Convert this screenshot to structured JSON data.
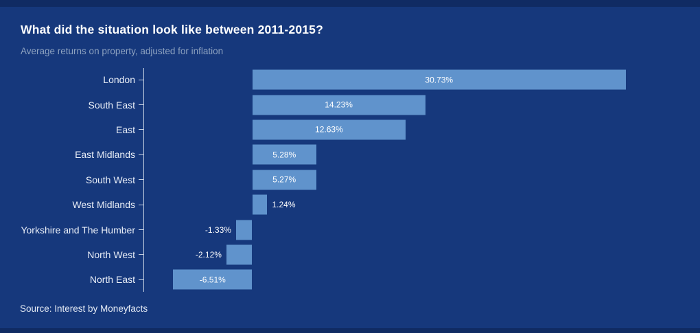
{
  "header": {
    "title": "What did the situation look like between 2011-2015?",
    "subtitle": "Average returns on property, adjusted for inflation"
  },
  "source_text": "Source: Interest by Moneyfacts",
  "colors": {
    "background": "#16387c",
    "bar_fill": "#6093cc",
    "axis": "#c8d3e4",
    "title_text": "#ffffff",
    "subtitle_text": "#8da2c0",
    "value_label_text": "#ffffff"
  },
  "chart_data": {
    "type": "bar",
    "orientation": "horizontal",
    "title": "What did the situation look like between 2011-2015?",
    "subtitle": "Average returns on property, adjusted for inflation",
    "categories": [
      "London",
      "South East",
      "East",
      "East Midlands",
      "South West",
      "West Midlands",
      "Yorkshire and The Humber",
      "North West",
      "North East"
    ],
    "values": [
      30.73,
      14.23,
      12.63,
      5.28,
      5.27,
      1.24,
      -1.33,
      -2.12,
      -6.51
    ],
    "value_labels": [
      "30.73%",
      "14.23%",
      "12.63%",
      "5.28%",
      "5.27%",
      "1.24%",
      "-1.33%",
      "-2.12%",
      "-6.51%"
    ],
    "unit": "%",
    "xlim": [
      -8.9,
      35.1
    ],
    "grid": false,
    "legend": "none",
    "value_axis_hidden": true,
    "zero_baseline": true
  }
}
